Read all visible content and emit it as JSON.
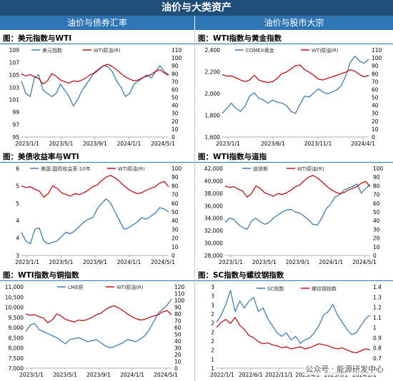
{
  "header": {
    "title": "油价与大类资产",
    "left_section": "油价与债券汇率",
    "right_section": "油价与股市大宗"
  },
  "colors": {
    "blue": "#2e75b6",
    "red": "#c00000",
    "banner": "#1f4e79"
  },
  "watermark": "公众号 · 能源研发中心",
  "charts": {
    "c1": {
      "title": "图：美元指数与WTI"
    },
    "c2": {
      "title": "图：WTI指数与黄金指数"
    },
    "c3": {
      "title": "图：美债收益率与WTI"
    },
    "c4": {
      "title": "图：WTI指数与道指"
    },
    "c5": {
      "title": "图：WTI指数与铜指数"
    },
    "c6": {
      "title": "图：SC指数与螺纹钢指数"
    }
  },
  "chart_data": [
    {
      "id": "c1",
      "type": "line",
      "x_ticks": [
        "2023/1/1",
        "2023/5/1",
        "2023/9/1",
        "2024/1/1",
        "2024/5/1"
      ],
      "left_axis": {
        "ticks": [
          "95",
          "97",
          "99",
          "101",
          "103",
          "105",
          "107",
          "109"
        ],
        "range": [
          95,
          109
        ]
      },
      "right_axis": {
        "ticks": [
          "0",
          "10",
          "20",
          "30",
          "40",
          "50",
          "60",
          "70",
          "80",
          "90",
          "100",
          "110"
        ],
        "range": [
          0,
          110
        ]
      },
      "series": [
        {
          "name": "美元指数",
          "axis": "left",
          "color": "#2e75b6",
          "values": [
            104,
            102,
            101.5,
            104.5,
            105,
            102.5,
            102,
            101.5,
            102,
            103.5,
            102.5,
            101.5,
            100,
            101,
            102.5,
            103.5,
            104.5,
            105.5,
            106,
            106.5,
            106.3,
            105.5,
            104,
            103,
            101.5,
            102,
            103.5,
            104,
            104.5,
            105,
            104.5,
            105.5,
            106.5,
            105.5,
            105
          ]
        },
        {
          "name": "WTI原油(R)",
          "axis": "right",
          "color": "#c00000",
          "values": [
            80,
            77,
            79,
            76,
            74,
            67,
            71,
            80,
            77,
            72,
            70,
            68,
            71,
            70,
            72,
            75,
            79,
            81,
            86,
            90,
            92,
            89,
            85,
            80,
            76,
            73,
            71,
            72,
            75,
            77,
            79,
            83,
            85,
            81,
            78
          ]
        }
      ]
    },
    {
      "id": "c2",
      "type": "line",
      "x_ticks": [
        "2023/1/1",
        "2023/6/1",
        "2023/11/1",
        "2024/4/1"
      ],
      "left_axis": {
        "ticks": [
          "1,600",
          "1,800",
          "2,000",
          "2,200",
          "2,400"
        ],
        "range": [
          1600,
          2450
        ]
      },
      "right_axis": {
        "ticks": [
          "0",
          "10",
          "20",
          "30",
          "40",
          "50",
          "60",
          "70",
          "80",
          "90",
          "100",
          "110"
        ],
        "range": [
          0,
          110
        ]
      },
      "series": [
        {
          "name": "COMEX黄金",
          "axis": "left",
          "color": "#2e75b6",
          "values": [
            1830,
            1880,
            1930,
            1880,
            1850,
            1900,
            2000,
            2030,
            1980,
            1960,
            1930,
            1960,
            1940,
            1930,
            1910,
            1850,
            1830,
            1920,
            2000,
            1990,
            2030,
            2070,
            2040,
            2020,
            2040,
            2060,
            2100,
            2200,
            2330,
            2390,
            2340,
            2320,
            2360
          ]
        },
        {
          "name": "WTI原油(R)",
          "axis": "right",
          "color": "#c00000",
          "values": [
            79,
            77,
            77,
            75,
            72,
            70,
            72,
            78,
            72,
            70,
            69,
            70,
            74,
            80,
            82,
            86,
            90,
            91,
            85,
            82,
            78,
            73,
            72,
            74,
            76,
            78,
            80,
            82,
            85,
            83,
            79,
            76,
            78
          ]
        }
      ]
    },
    {
      "id": "c3",
      "type": "line",
      "x_ticks": [
        "2023/1/1",
        "2023/5/1",
        "2023/9/1",
        "2024/1/1",
        "2024/5/1"
      ],
      "left_axis": {
        "ticks": [
          "3",
          "4",
          "4",
          "5",
          "5",
          "6"
        ],
        "range": [
          3,
          6
        ]
      },
      "right_axis": {
        "ticks": [
          "0",
          "10",
          "20",
          "30",
          "40",
          "50",
          "60",
          "70",
          "80",
          "90",
          "100"
        ],
        "range": [
          0,
          100
        ]
      },
      "series": [
        {
          "name": "美国:国债收益率:10年",
          "axis": "left",
          "color": "#2e75b6",
          "values": [
            3.8,
            3.5,
            3.4,
            3.9,
            3.95,
            3.5,
            3.4,
            3.45,
            3.5,
            3.65,
            3.8,
            3.75,
            3.85,
            4.0,
            4.15,
            4.25,
            4.3,
            4.6,
            4.8,
            4.95,
            4.8,
            4.5,
            4.2,
            3.9,
            3.95,
            4.05,
            4.15,
            4.3,
            4.25,
            4.35,
            4.45,
            4.65,
            4.6,
            4.5
          ]
        },
        {
          "name": "WTI原油(R)",
          "axis": "right",
          "color": "#c00000",
          "values": [
            80,
            78,
            79,
            76,
            74,
            67,
            71,
            80,
            77,
            72,
            70,
            68,
            71,
            70,
            72,
            75,
            79,
            81,
            86,
            90,
            92,
            89,
            85,
            80,
            76,
            73,
            71,
            72,
            75,
            77,
            79,
            83,
            85,
            79
          ]
        }
      ]
    },
    {
      "id": "c4",
      "type": "line",
      "x_ticks": [
        "2023/1/1",
        "2023/5/1",
        "2023/9/1",
        "2024/1/1",
        "2024/5/1"
      ],
      "left_axis": {
        "ticks": [
          "28,000",
          "30,000",
          "32,000",
          "34,000",
          "36,000",
          "38,000",
          "40,000",
          "42,000"
        ],
        "range": [
          28000,
          42000
        ]
      },
      "right_axis": {
        "ticks": [
          "0",
          "10",
          "20",
          "30",
          "40",
          "50",
          "60",
          "70",
          "80",
          "90",
          "100"
        ],
        "range": [
          0,
          100
        ]
      },
      "series": [
        {
          "name": "道琼斯",
          "axis": "left",
          "color": "#2e75b6",
          "values": [
            33300,
            34000,
            33800,
            33000,
            32500,
            32200,
            33500,
            34000,
            33400,
            33000,
            33300,
            34000,
            34500,
            35000,
            35300,
            35400,
            35000,
            34800,
            34300,
            33700,
            33000,
            32900,
            34000,
            35500,
            36200,
            37400,
            37700,
            38500,
            38800,
            39100,
            39500,
            38000,
            38800,
            39400
          ]
        },
        {
          "name": "WTI原油(R)",
          "axis": "right",
          "color": "#c00000",
          "values": [
            80,
            78,
            79,
            76,
            74,
            67,
            71,
            80,
            77,
            72,
            70,
            68,
            71,
            70,
            72,
            75,
            79,
            81,
            86,
            90,
            92,
            89,
            85,
            80,
            76,
            73,
            71,
            72,
            75,
            77,
            79,
            83,
            85,
            79
          ]
        }
      ]
    },
    {
      "id": "c5",
      "type": "line",
      "x_ticks": [
        "2023/1/1",
        "2023/5/1",
        "2023/9/1",
        "2024/1/1",
        "2024/5/1"
      ],
      "left_axis": {
        "ticks": [
          "7,000",
          "7,500",
          "8,000",
          "8,500",
          "9,000",
          "9,500",
          "10,000",
          "10,500",
          "11,000"
        ],
        "range": [
          7000,
          11000
        ]
      },
      "right_axis": {
        "ticks": [
          "0",
          "10",
          "20",
          "30",
          "40",
          "50",
          "60",
          "70",
          "80",
          "90",
          "100",
          "110",
          "120"
        ],
        "range": [
          0,
          120
        ]
      },
      "series": [
        {
          "name": "LME铜",
          "axis": "left",
          "color": "#2e75b6",
          "values": [
            8800,
            9100,
            9200,
            8900,
            8800,
            8700,
            8600,
            8500,
            8350,
            8200,
            8400,
            8450,
            8500,
            8400,
            8300,
            8350,
            8400,
            8250,
            8100,
            8000,
            8050,
            8150,
            8250,
            8400,
            8350,
            8300,
            8450,
            8600,
            8900,
            9300,
            9700,
            9900,
            10100,
            10400
          ]
        },
        {
          "name": "WTI原油(R)",
          "axis": "right",
          "color": "#c00000",
          "values": [
            80,
            78,
            79,
            76,
            74,
            67,
            71,
            80,
            77,
            72,
            70,
            68,
            71,
            70,
            72,
            75,
            79,
            81,
            86,
            90,
            92,
            89,
            85,
            80,
            76,
            73,
            71,
            72,
            75,
            77,
            79,
            83,
            85,
            79
          ]
        }
      ]
    },
    {
      "id": "c6",
      "type": "line",
      "x_ticks": [
        "2022/1/1",
        "2022/6/1",
        "2022/11/1",
        "2023/4/1",
        "2023/9/1",
        "2024/2/1"
      ],
      "left_axis": {
        "ticks": [
          "1",
          "1",
          "2",
          "2",
          "2",
          "2",
          "2",
          "3",
          "3",
          "3"
        ],
        "range": [
          1,
          3.3
        ]
      },
      "right_axis": {
        "ticks": [
          "0.6",
          "0.7",
          "0.8",
          "0.9",
          "1",
          "1.1",
          "1.2",
          "1.3",
          "1.4"
        ],
        "range": [
          0.6,
          1.4
        ]
      },
      "series": [
        {
          "name": "SC指数",
          "axis": "left",
          "color": "#2e75b6",
          "values": [
            2.3,
            2.5,
            2.8,
            3.2,
            2.6,
            2.9,
            2.7,
            2.9,
            3.0,
            2.6,
            2.7,
            2.4,
            2.2,
            2.0,
            1.9,
            2.0,
            1.8,
            1.9,
            1.7,
            1.8,
            1.85,
            2.0,
            2.2,
            2.5,
            2.6,
            2.8,
            2.5,
            2.3,
            2.1,
            1.95,
            2.0,
            2.2,
            2.4,
            2.5
          ]
        },
        {
          "name": "螺纹钢指数",
          "axis": "right",
          "color": "#c00000",
          "values": [
            1.0,
            1.05,
            1.08,
            1.04,
            1.1,
            1.02,
            0.98,
            0.92,
            0.9,
            0.86,
            0.84,
            0.85,
            0.83,
            0.82,
            0.8,
            0.81,
            0.79,
            0.8,
            0.81,
            0.79,
            0.8,
            0.82,
            0.84,
            0.83,
            0.82,
            0.8,
            0.79,
            0.8,
            0.78,
            0.76,
            0.75,
            0.77,
            0.79,
            0.78
          ]
        }
      ]
    }
  ]
}
